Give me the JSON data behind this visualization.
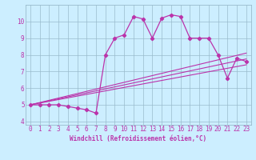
{
  "xlabel": "Windchill (Refroidissement éolien,°C)",
  "bg_color": "#cceeff",
  "line_color": "#bb33aa",
  "grid_color": "#99bbcc",
  "spine_color": "#667788",
  "xlim": [
    -0.5,
    23.5
  ],
  "ylim": [
    3.8,
    11.0
  ],
  "xticks": [
    0,
    1,
    2,
    3,
    4,
    5,
    6,
    7,
    8,
    9,
    10,
    11,
    12,
    13,
    14,
    15,
    16,
    17,
    18,
    19,
    20,
    21,
    22,
    23
  ],
  "yticks": [
    4,
    5,
    6,
    7,
    8,
    9,
    10
  ],
  "main_x": [
    0,
    1,
    2,
    3,
    4,
    5,
    6,
    7,
    8,
    9,
    10,
    11,
    12,
    13,
    14,
    15,
    16,
    17,
    18,
    19,
    20,
    21,
    22,
    23
  ],
  "main_y": [
    5.0,
    5.0,
    5.0,
    5.0,
    4.9,
    4.8,
    4.7,
    4.5,
    8.0,
    9.0,
    9.2,
    10.3,
    10.15,
    9.0,
    10.2,
    10.4,
    10.3,
    9.0,
    9.0,
    9.0,
    8.0,
    6.6,
    7.8,
    7.6
  ],
  "line1_x": [
    0,
    23
  ],
  "line1_y": [
    5.0,
    7.4
  ],
  "line2_x": [
    0,
    23
  ],
  "line2_y": [
    5.0,
    7.75
  ],
  "line3_x": [
    0,
    23
  ],
  "line3_y": [
    5.0,
    8.1
  ],
  "xlabel_fontsize": 5.5,
  "tick_fontsize": 5.5
}
